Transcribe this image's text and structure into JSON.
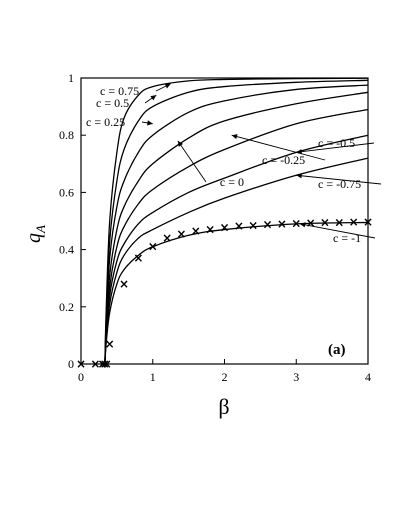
{
  "chart_data": {
    "type": "line",
    "xlabel": "β",
    "ylabel_main": "q",
    "ylabel_sub": "A",
    "panel_label": "(a)",
    "xlim": [
      0,
      4
    ],
    "ylim": [
      0,
      1
    ],
    "xticks": [
      0,
      1,
      2,
      3,
      4
    ],
    "xtick_labels": [
      "0",
      "1",
      "2",
      "3",
      "4"
    ],
    "yticks": [
      0,
      0.2,
      0.4,
      0.6,
      0.8,
      1
    ],
    "ytick_labels": [
      "0",
      "0.2",
      "0.4",
      "0.6",
      "0.8",
      "1"
    ],
    "grid": false,
    "line_color": "#000000",
    "series": [
      {
        "name": "c = 0.75",
        "x": [
          0.333,
          0.35,
          0.4,
          0.5,
          0.6,
          0.8,
          1.0,
          1.5,
          2.0,
          3.0,
          4.0
        ],
        "values": [
          0.0,
          0.18,
          0.5,
          0.74,
          0.86,
          0.94,
          0.97,
          0.99,
          0.995,
          0.998,
          0.999
        ]
      },
      {
        "name": "c = 0.5",
        "x": [
          0.333,
          0.35,
          0.4,
          0.5,
          0.6,
          0.8,
          1.0,
          1.5,
          2.0,
          3.0,
          4.0
        ],
        "values": [
          0.0,
          0.15,
          0.43,
          0.64,
          0.75,
          0.85,
          0.9,
          0.95,
          0.97,
          0.985,
          0.992
        ]
      },
      {
        "name": "c = 0.25",
        "x": [
          0.333,
          0.35,
          0.4,
          0.5,
          0.6,
          0.8,
          1.0,
          1.5,
          2.0,
          3.0,
          4.0
        ],
        "values": [
          0.0,
          0.13,
          0.37,
          0.55,
          0.64,
          0.74,
          0.8,
          0.88,
          0.92,
          0.96,
          0.975
        ]
      },
      {
        "name": "c = 0",
        "x": [
          0.333,
          0.35,
          0.4,
          0.5,
          0.6,
          0.8,
          1.0,
          1.5,
          2.0,
          3.0,
          4.0
        ],
        "values": [
          0.0,
          0.11,
          0.31,
          0.47,
          0.55,
          0.64,
          0.7,
          0.79,
          0.85,
          0.91,
          0.95
        ]
      },
      {
        "name": "c = -0.25",
        "x": [
          0.333,
          0.35,
          0.4,
          0.5,
          0.6,
          0.8,
          1.0,
          1.5,
          2.0,
          3.0,
          4.0
        ],
        "values": [
          0.0,
          0.1,
          0.27,
          0.41,
          0.48,
          0.56,
          0.61,
          0.69,
          0.75,
          0.84,
          0.89
        ]
      },
      {
        "name": "c = -0.5",
        "x": [
          0.333,
          0.35,
          0.4,
          0.5,
          0.6,
          0.8,
          1.0,
          1.5,
          2.0,
          3.0,
          4.0
        ],
        "values": [
          0.0,
          0.09,
          0.24,
          0.36,
          0.42,
          0.49,
          0.53,
          0.6,
          0.65,
          0.74,
          0.8
        ]
      },
      {
        "name": "c = -0.75",
        "x": [
          0.333,
          0.35,
          0.4,
          0.5,
          0.6,
          0.8,
          1.0,
          1.5,
          2.0,
          3.0,
          4.0
        ],
        "values": [
          0.0,
          0.08,
          0.21,
          0.32,
          0.38,
          0.44,
          0.47,
          0.53,
          0.58,
          0.66,
          0.72
        ]
      },
      {
        "name": "c = -1",
        "x": [
          0.333,
          0.35,
          0.4,
          0.5,
          0.6,
          0.8,
          1.0,
          1.5,
          2.0,
          3.0,
          4.0
        ],
        "values": [
          0.0,
          0.07,
          0.18,
          0.28,
          0.33,
          0.38,
          0.41,
          0.45,
          0.47,
          0.49,
          0.495
        ]
      }
    ],
    "markers": {
      "symbol": "×",
      "x": [
        0.0,
        0.2,
        0.3,
        0.33,
        0.36,
        0.4,
        0.6,
        0.8,
        1.0,
        1.2,
        1.4,
        1.6,
        1.8,
        2.0,
        2.2,
        2.4,
        2.6,
        2.8,
        3.0,
        3.2,
        3.4,
        3.6,
        3.8,
        4.0
      ],
      "y": [
        0.0,
        0.0,
        0.0,
        0.0,
        0.0,
        0.07,
        0.28,
        0.37,
        0.41,
        0.44,
        0.455,
        0.465,
        0.47,
        0.477,
        0.482,
        0.485,
        0.488,
        0.49,
        0.492,
        0.493,
        0.494,
        0.495,
        0.496,
        0.497
      ]
    },
    "annotations": [
      {
        "text": "c = 0.75",
        "arrow_to": [
          1.25,
          0.98
        ]
      },
      {
        "text": "c = 0.5",
        "arrow_to": [
          1.05,
          0.94
        ]
      },
      {
        "text": "c = 0.25",
        "arrow_to": [
          1.0,
          0.84
        ]
      },
      {
        "text": "c = 0",
        "arrow_to": [
          1.35,
          0.78
        ]
      },
      {
        "text": "c = -0.25",
        "arrow_to": [
          2.1,
          0.8
        ]
      },
      {
        "text": "c = -0.5",
        "arrow_to": [
          3.0,
          0.74
        ]
      },
      {
        "text": "c = -0.75",
        "arrow_to": [
          3.0,
          0.66
        ]
      },
      {
        "text": "c = -1",
        "arrow_to": [
          3.05,
          0.49
        ]
      }
    ]
  }
}
